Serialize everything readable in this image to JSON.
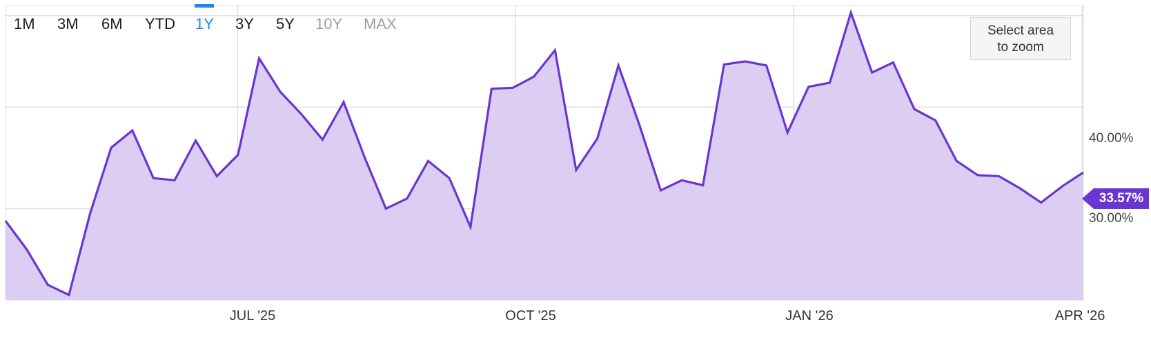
{
  "range_selector": {
    "buttons": [
      {
        "label": "1M",
        "state": "normal"
      },
      {
        "label": "3M",
        "state": "normal"
      },
      {
        "label": "6M",
        "state": "normal"
      },
      {
        "label": "YTD",
        "state": "normal"
      },
      {
        "label": "1Y",
        "state": "active"
      },
      {
        "label": "3Y",
        "state": "normal"
      },
      {
        "label": "5Y",
        "state": "normal"
      },
      {
        "label": "10Y",
        "state": "disabled"
      },
      {
        "label": "MAX",
        "state": "disabled"
      }
    ],
    "zoom_button_line1": "Select area",
    "zoom_button_line2": "to zoom"
  },
  "colors": {
    "line": "#6a35d0",
    "area_fill": "#dccdf3",
    "active_range": "#1e88e5",
    "grid": "#e0e0e0",
    "badge": "#6a35d0"
  },
  "last_value_label": "33.57%",
  "chart_data": {
    "type": "area",
    "title": "",
    "xlabel": "",
    "ylabel": "",
    "x_tick_labels": [
      "JUL '25",
      "OCT '25",
      "JAN '26",
      "APR '26"
    ],
    "y_tick_labels": [
      "40.00%",
      "30.00%"
    ],
    "y_tick_values": [
      40,
      30
    ],
    "ylim": [
      21,
      50
    ],
    "grid": true,
    "legend": "none",
    "series": [
      {
        "values": [
          28.8,
          26.0,
          22.5,
          21.5,
          29.5,
          36.0,
          37.7,
          33.0,
          32.8,
          36.7,
          33.2,
          35.3,
          44.8,
          41.5,
          39.3,
          36.8,
          40.5,
          35.0,
          30.0,
          31.0,
          34.7,
          33.0,
          28.2,
          41.8,
          41.9,
          43.0,
          45.6,
          33.8,
          36.9,
          44.1,
          38.2,
          31.8,
          32.8,
          32.3,
          44.2,
          44.5,
          44.1,
          37.5,
          42.0,
          42.4,
          49.3,
          43.4,
          44.4,
          39.8,
          38.7,
          34.7,
          33.3,
          33.2,
          32.0,
          30.6,
          32.2,
          33.57
        ]
      }
    ]
  }
}
